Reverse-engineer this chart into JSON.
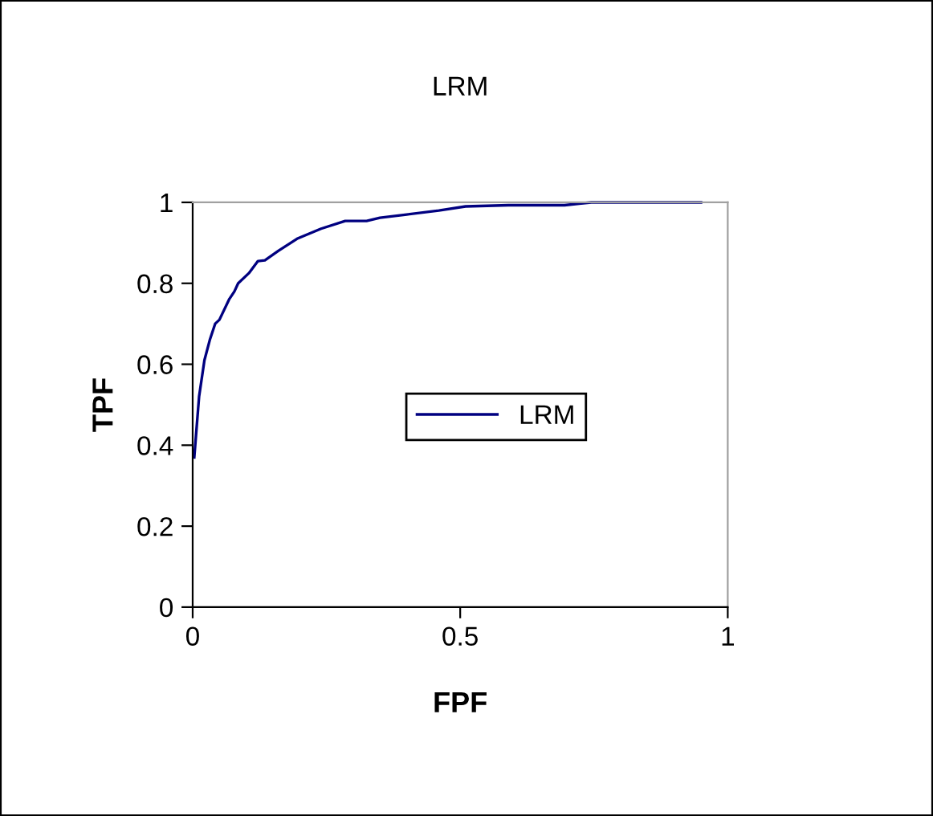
{
  "chart_data": {
    "type": "line",
    "title": "LRM",
    "xlabel": "FPF",
    "ylabel": "TPF",
    "xlim": [
      0,
      1
    ],
    "xticks": [
      0,
      0.5,
      1
    ],
    "ylim": [
      0,
      1
    ],
    "yticks": [
      0,
      0.2,
      0.4,
      0.6,
      0.8,
      1
    ],
    "grid": false,
    "legend": "right",
    "marker": "none",
    "line_style": "solid",
    "series": [
      {
        "name": "LRM",
        "color": "#000080",
        "x": [
          0.003,
          0.012,
          0.022,
          0.032,
          0.042,
          0.05,
          0.068,
          0.078,
          0.085,
          0.105,
          0.122,
          0.135,
          0.16,
          0.195,
          0.24,
          0.285,
          0.325,
          0.35,
          0.4,
          0.46,
          0.51,
          0.59,
          0.695,
          0.745,
          0.95
        ],
        "values": [
          0.37,
          0.52,
          0.61,
          0.66,
          0.7,
          0.71,
          0.76,
          0.78,
          0.8,
          0.825,
          0.855,
          0.857,
          0.88,
          0.91,
          0.935,
          0.954,
          0.954,
          0.962,
          0.97,
          0.98,
          0.99,
          0.993,
          0.993,
          1.0,
          1.0
        ]
      }
    ]
  }
}
